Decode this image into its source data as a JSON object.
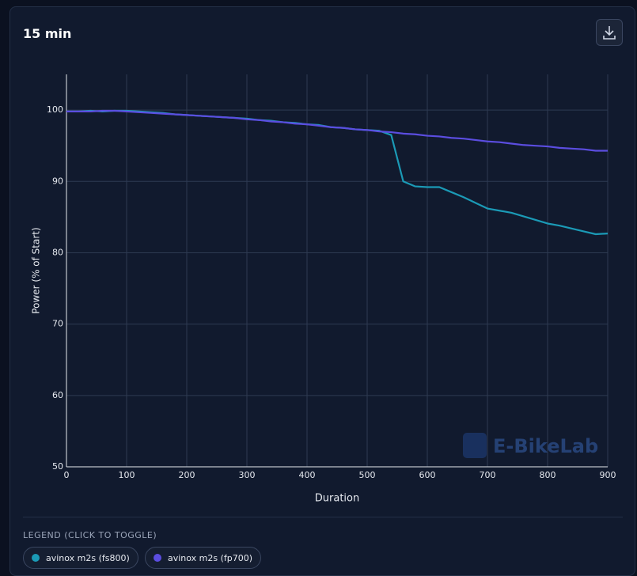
{
  "chart_data": {
    "type": "line",
    "title": "15 min",
    "x_label": "Duration",
    "y_label": "Power (% of Start)",
    "watermark": "E-BikeLab",
    "legend_title": "LEGEND (CLICK TO TOGGLE)",
    "grid": true,
    "xlim": [
      0,
      900
    ],
    "xticks": [
      0,
      100,
      200,
      300,
      400,
      500,
      600,
      700,
      800,
      900
    ],
    "ylim": [
      50,
      105
    ],
    "yticks": [
      50,
      60,
      70,
      80,
      90,
      100
    ],
    "x": [
      0,
      20,
      40,
      60,
      80,
      100,
      120,
      140,
      160,
      180,
      200,
      220,
      240,
      260,
      280,
      300,
      320,
      340,
      360,
      380,
      400,
      420,
      440,
      460,
      480,
      500,
      520,
      540,
      560,
      580,
      600,
      620,
      640,
      660,
      680,
      700,
      720,
      740,
      760,
      780,
      800,
      820,
      840,
      860,
      880,
      900
    ],
    "series": [
      {
        "name": "avinox m2s (fs800)",
        "color": "#1b9ab6",
        "values": [
          99.8,
          99.8,
          99.9,
          99.8,
          99.9,
          99.9,
          99.8,
          99.7,
          99.6,
          99.4,
          99.3,
          99.2,
          99.1,
          99.0,
          98.9,
          98.8,
          98.6,
          98.5,
          98.3,
          98.2,
          98.0,
          97.9,
          97.6,
          97.5,
          97.3,
          97.2,
          97.1,
          96.5,
          90.0,
          89.3,
          89.2,
          89.2,
          88.5,
          87.8,
          87.0,
          86.2,
          85.9,
          85.6,
          85.1,
          84.6,
          84.1,
          83.8,
          83.4,
          83.0,
          82.6,
          82.7
        ]
      },
      {
        "name": "avinox m2s (fp700)",
        "color": "#5b4de0",
        "values": [
          99.8,
          99.8,
          99.8,
          99.9,
          99.9,
          99.8,
          99.7,
          99.6,
          99.5,
          99.4,
          99.3,
          99.2,
          99.1,
          99.0,
          98.9,
          98.7,
          98.6,
          98.4,
          98.3,
          98.1,
          98.0,
          97.8,
          97.6,
          97.5,
          97.3,
          97.2,
          97.0,
          96.9,
          96.7,
          96.6,
          96.4,
          96.3,
          96.1,
          96.0,
          95.8,
          95.6,
          95.5,
          95.3,
          95.1,
          95.0,
          94.9,
          94.7,
          94.6,
          94.5,
          94.3,
          94.3
        ]
      }
    ]
  }
}
